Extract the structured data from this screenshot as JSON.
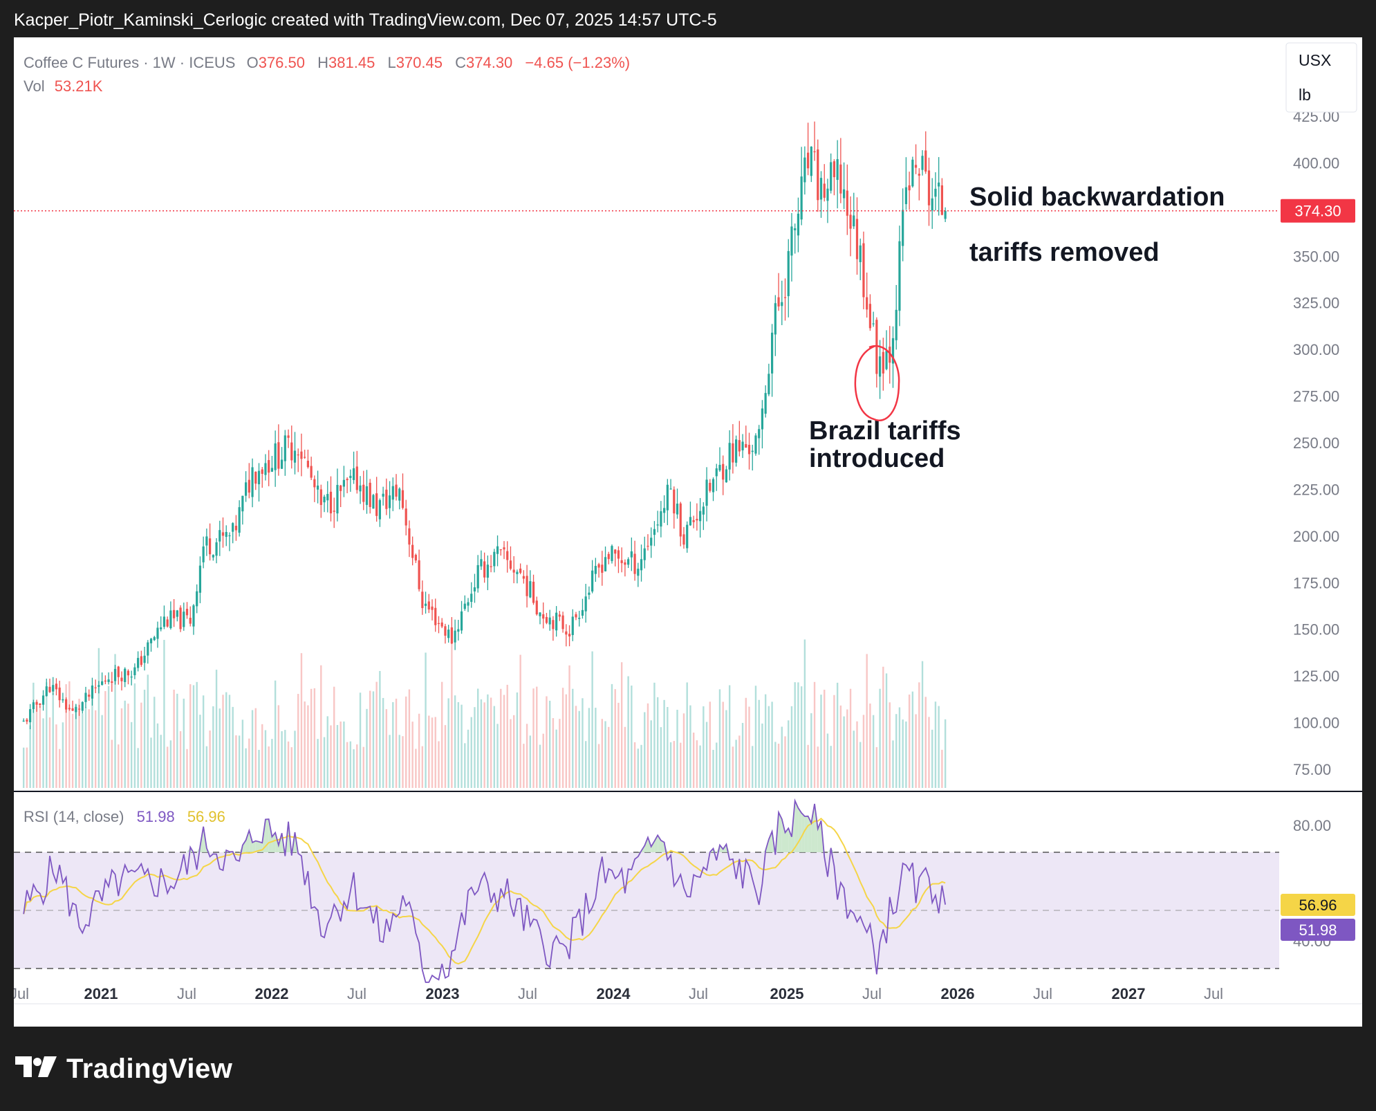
{
  "header": {
    "caption": "Kacper_Piotr_Kaminski_Cerlogic created with TradingView.com, Dec 07, 2025 14:57 UTC-5"
  },
  "legend": {
    "symbol": "Coffee C Futures · 1W · ICEUS",
    "o_label": "O",
    "o_value": "376.50",
    "h_label": "H",
    "h_value": "381.45",
    "l_label": "L",
    "l_value": "370.45",
    "c_label": "C",
    "c_value": "374.30",
    "change": "−4.65 (−1.23%)",
    "vol_label": "Vol",
    "vol_value": "53.21K"
  },
  "unit_box": {
    "currency": "USX",
    "unit": "lb"
  },
  "price_badge": "374.30",
  "rsi": {
    "label": "RSI (14, close)",
    "rsi_value": "51.98",
    "ma_value": "56.96",
    "ticks": [
      "80.00",
      "40.00"
    ],
    "upper_band": 70,
    "lower_band": 30,
    "mid_band": 50
  },
  "annotations": {
    "backwardation": "Solid backwardation",
    "removed": "tariffs removed",
    "introduced_line1": "Brazil tariffs",
    "introduced_line2": "introduced"
  },
  "brand": "TradingView",
  "colors": {
    "up": "#26a69a",
    "down": "#ef5350",
    "rsi_line": "#7e57c2",
    "rsi_ma": "#f5d547",
    "rsi_band": "#ede7f6",
    "price_line": "#f23645"
  },
  "chart_data": {
    "type": "candlestick",
    "title": "Coffee C Futures · 1W · ICEUS",
    "ylabel": "",
    "ylim": [
      65,
      445
    ],
    "yticks": [
      "425.00",
      "400.00",
      "375.00",
      "350.00",
      "325.00",
      "300.00",
      "275.00",
      "250.00",
      "225.00",
      "200.00",
      "175.00",
      "150.00",
      "125.00",
      "100.00",
      "75.00"
    ],
    "x_labels": [
      "Jul",
      "2021",
      "Jul",
      "2022",
      "Jul",
      "2023",
      "Jul",
      "2024",
      "Jul",
      "2025",
      "Jul",
      "2026",
      "Jul",
      "2027",
      "Jul"
    ],
    "last_price": 374.3,
    "close_anchors": [
      {
        "date": "2020-07-06",
        "close": 100
      },
      {
        "date": "2020-08-31",
        "close": 120
      },
      {
        "date": "2020-10-19",
        "close": 105
      },
      {
        "date": "2021-01-04",
        "close": 125
      },
      {
        "date": "2021-03-01",
        "close": 128
      },
      {
        "date": "2021-05-03",
        "close": 155
      },
      {
        "date": "2021-06-28",
        "close": 155
      },
      {
        "date": "2021-07-26",
        "close": 195
      },
      {
        "date": "2021-09-27",
        "close": 200
      },
      {
        "date": "2021-11-08",
        "close": 235
      },
      {
        "date": "2022-01-10",
        "close": 245
      },
      {
        "date": "2022-02-14",
        "close": 250
      },
      {
        "date": "2022-04-04",
        "close": 215
      },
      {
        "date": "2022-06-20",
        "close": 230
      },
      {
        "date": "2022-08-01",
        "close": 215
      },
      {
        "date": "2022-09-19",
        "close": 225
      },
      {
        "date": "2022-11-07",
        "close": 165
      },
      {
        "date": "2023-01-09",
        "close": 145
      },
      {
        "date": "2023-03-06",
        "close": 180
      },
      {
        "date": "2023-04-17",
        "close": 190
      },
      {
        "date": "2023-06-05",
        "close": 180
      },
      {
        "date": "2023-07-17",
        "close": 160
      },
      {
        "date": "2023-09-18",
        "close": 150
      },
      {
        "date": "2023-12-04",
        "close": 190
      },
      {
        "date": "2024-02-12",
        "close": 185
      },
      {
        "date": "2024-04-22",
        "close": 225
      },
      {
        "date": "2024-05-20",
        "close": 200
      },
      {
        "date": "2024-08-26",
        "close": 245
      },
      {
        "date": "2024-10-28",
        "close": 250
      },
      {
        "date": "2024-11-25",
        "close": 310
      },
      {
        "date": "2024-12-16",
        "close": 330
      },
      {
        "date": "2025-02-10",
        "close": 400
      },
      {
        "date": "2025-03-10",
        "close": 385
      },
      {
        "date": "2025-04-21",
        "close": 390
      },
      {
        "date": "2025-06-02",
        "close": 350
      },
      {
        "date": "2025-07-07",
        "close": 295
      },
      {
        "date": "2025-08-04",
        "close": 300
      },
      {
        "date": "2025-08-18",
        "close": 330
      },
      {
        "date": "2025-09-08",
        "close": 385
      },
      {
        "date": "2025-10-06",
        "close": 400
      },
      {
        "date": "2025-10-27",
        "close": 385
      },
      {
        "date": "2025-12-01",
        "close": 374.3
      }
    ],
    "rsi_anchors": [
      {
        "date": "2020-07-06",
        "rsi": 50
      },
      {
        "date": "2020-09-14",
        "rsi": 65
      },
      {
        "date": "2020-11-02",
        "rsi": 45
      },
      {
        "date": "2021-01-25",
        "rsi": 60
      },
      {
        "date": "2021-05-24",
        "rsi": 60
      },
      {
        "date": "2021-08-02",
        "rsi": 74
      },
      {
        "date": "2021-10-04",
        "rsi": 65
      },
      {
        "date": "2021-11-22",
        "rsi": 79
      },
      {
        "date": "2022-02-14",
        "rsi": 72
      },
      {
        "date": "2022-04-04",
        "rsi": 45
      },
      {
        "date": "2022-06-13",
        "rsi": 58
      },
      {
        "date": "2022-08-15",
        "rsi": 41
      },
      {
        "date": "2022-10-03",
        "rsi": 55
      },
      {
        "date": "2022-11-07",
        "rsi": 28
      },
      {
        "date": "2023-01-02",
        "rsi": 32
      },
      {
        "date": "2023-02-27",
        "rsi": 58
      },
      {
        "date": "2023-05-08",
        "rsi": 55
      },
      {
        "date": "2023-07-24",
        "rsi": 38
      },
      {
        "date": "2023-09-11",
        "rsi": 36
      },
      {
        "date": "2023-11-27",
        "rsi": 62
      },
      {
        "date": "2024-01-22",
        "rsi": 60
      },
      {
        "date": "2024-04-01",
        "rsi": 76
      },
      {
        "date": "2024-05-20",
        "rsi": 55
      },
      {
        "date": "2024-08-05",
        "rsi": 70
      },
      {
        "date": "2024-10-28",
        "rsi": 58
      },
      {
        "date": "2024-12-09",
        "rsi": 78
      },
      {
        "date": "2025-02-10",
        "rsi": 86
      },
      {
        "date": "2025-04-07",
        "rsi": 62
      },
      {
        "date": "2025-06-02",
        "rsi": 45
      },
      {
        "date": "2025-07-07",
        "rsi": 35
      },
      {
        "date": "2025-08-11",
        "rsi": 52
      },
      {
        "date": "2025-09-08",
        "rsi": 63
      },
      {
        "date": "2025-10-06",
        "rsi": 56
      },
      {
        "date": "2025-10-27",
        "rsi": 61
      },
      {
        "date": "2025-12-01",
        "rsi": 51.98
      }
    ]
  }
}
